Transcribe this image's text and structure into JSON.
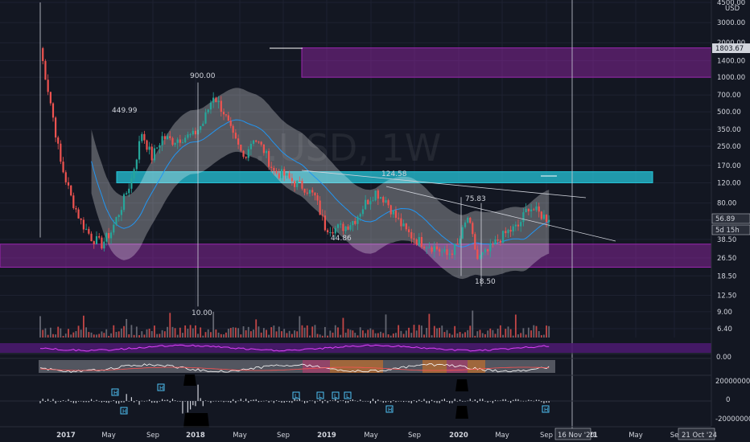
{
  "chart_data": {
    "type": "candlestick",
    "timeframe": "1W",
    "watermark": "…USD, 1W",
    "currency_label": "USD",
    "scale": "log",
    "price_axis_ticks": [
      4500,
      3000,
      2000,
      1400,
      1000,
      700,
      500,
      350,
      250,
      170,
      120,
      80,
      56.89,
      38.5,
      26.5,
      18.5,
      12.5,
      9.0,
      6.4
    ],
    "price_axis_tick_labels": [
      "4500.00",
      "3000.00",
      "2000.00",
      "1400.00",
      "1000.00",
      "700.00",
      "500.00",
      "350.00",
      "250.00",
      "170.00",
      "120.00",
      "80.00",
      "56.89",
      "38.50",
      "26.50",
      "18.50",
      "12.50",
      "9.00",
      "6.40"
    ],
    "time_axis_labels": [
      "2017",
      "May",
      "Sep",
      "2018",
      "May",
      "Sep",
      "2019",
      "May",
      "Sep",
      "2020",
      "May",
      "Sep",
      "21",
      "May",
      "Se"
    ],
    "current_price": 56.89,
    "current_price_label": "56.89",
    "countdown": "5d 15h",
    "level_1803": "1803.67",
    "crosshair_date": "16 Nov '20",
    "right_date": "21 Oct '24",
    "annotations": [
      {
        "text": "900.00",
        "price": 900
      },
      {
        "text": "449.99",
        "price": 450
      },
      {
        "text": "124.58",
        "price": 124.58
      },
      {
        "text": "75.83",
        "price": 75.83
      },
      {
        "text": "44.86",
        "price": 44.86
      },
      {
        "text": "18.50",
        "price": 18.5
      },
      {
        "text": "10.00",
        "price": 10
      }
    ],
    "zones": [
      {
        "name": "upper-purple",
        "low": 1000,
        "high": 1803.67,
        "color": "#9c27b0"
      },
      {
        "name": "teal",
        "low": 120,
        "high": 150,
        "color": "#26c6da"
      },
      {
        "name": "lower-purple",
        "low": 22,
        "high": 35,
        "color": "#9c27b0"
      }
    ],
    "weekly_close_approx": [
      {
        "t": "2016-08",
        "v": 1800
      },
      {
        "t": "2016-09",
        "v": 600
      },
      {
        "t": "2016-10",
        "v": 180
      },
      {
        "t": "2016-11",
        "v": 90
      },
      {
        "t": "2016-12",
        "v": 55
      },
      {
        "t": "2017-01",
        "v": 40
      },
      {
        "t": "2017-02",
        "v": 35
      },
      {
        "t": "2017-03",
        "v": 45
      },
      {
        "t": "2017-04",
        "v": 75
      },
      {
        "t": "2017-05",
        "v": 130
      },
      {
        "t": "2017-06",
        "v": 330
      },
      {
        "t": "2017-07",
        "v": 200
      },
      {
        "t": "2017-08",
        "v": 300
      },
      {
        "t": "2017-09",
        "v": 280
      },
      {
        "t": "2017-10",
        "v": 300
      },
      {
        "t": "2017-11",
        "v": 310
      },
      {
        "t": "2017-12",
        "v": 400
      },
      {
        "t": "2018-01",
        "v": 700
      },
      {
        "t": "2018-02",
        "v": 500
      },
      {
        "t": "2018-03",
        "v": 300
      },
      {
        "t": "2018-04",
        "v": 200
      },
      {
        "t": "2018-05",
        "v": 300
      },
      {
        "t": "2018-06",
        "v": 230
      },
      {
        "t": "2018-07",
        "v": 150
      },
      {
        "t": "2018-08",
        "v": 140
      },
      {
        "t": "2018-09",
        "v": 120
      },
      {
        "t": "2018-10",
        "v": 110
      },
      {
        "t": "2018-11",
        "v": 90
      },
      {
        "t": "2018-12",
        "v": 50
      },
      {
        "t": "2019-01",
        "v": 48
      },
      {
        "t": "2019-02",
        "v": 50
      },
      {
        "t": "2019-03",
        "v": 58
      },
      {
        "t": "2019-04",
        "v": 80
      },
      {
        "t": "2019-05",
        "v": 100
      },
      {
        "t": "2019-06",
        "v": 85
      },
      {
        "t": "2019-07",
        "v": 60
      },
      {
        "t": "2019-08",
        "v": 45
      },
      {
        "t": "2019-09",
        "v": 38
      },
      {
        "t": "2019-10",
        "v": 35
      },
      {
        "t": "2019-11",
        "v": 32
      },
      {
        "t": "2019-12",
        "v": 28
      },
      {
        "t": "2020-01",
        "v": 34
      },
      {
        "t": "2020-02",
        "v": 60
      },
      {
        "t": "2020-03",
        "v": 26
      },
      {
        "t": "2020-04",
        "v": 30
      },
      {
        "t": "2020-05",
        "v": 38
      },
      {
        "t": "2020-06",
        "v": 45
      },
      {
        "t": "2020-07",
        "v": 50
      },
      {
        "t": "2020-08",
        "v": 75
      },
      {
        "t": "2020-09",
        "v": 65
      },
      {
        "t": "2020-10",
        "v": 56.89
      }
    ],
    "oscillator_axis": {
      "ticks": [
        20000000,
        0,
        -20000000
      ],
      "labels": [
        "20000000",
        "0",
        "-20000000"
      ]
    },
    "oscillator_markers": [
      "H",
      "H",
      "H",
      "L",
      "L",
      "L",
      "L",
      "H",
      "H"
    ],
    "indicator2_label": "0.00",
    "colors": {
      "up": "#26a69a",
      "down": "#ef5350",
      "background": "#131722"
    }
  }
}
